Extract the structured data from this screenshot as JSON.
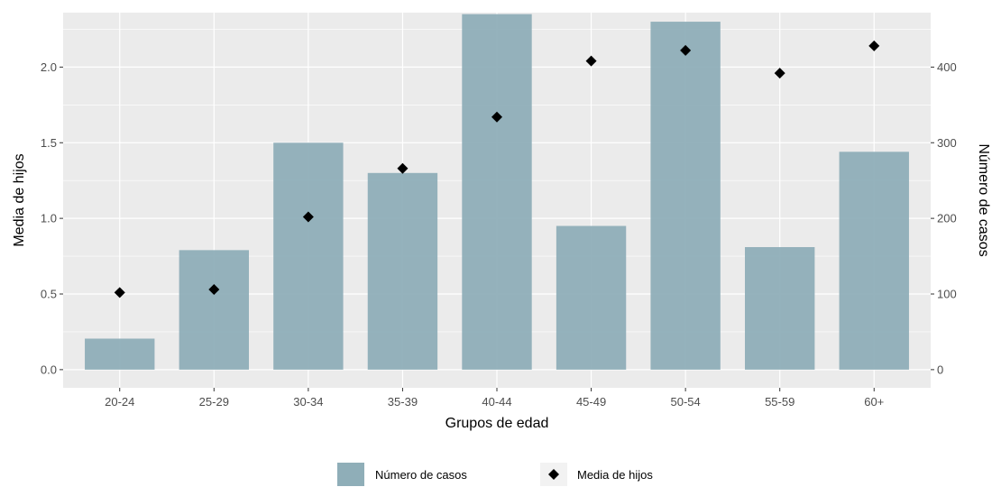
{
  "chart_data": {
    "type": "bar",
    "categories": [
      "20-24",
      "25-29",
      "30-34",
      "35-39",
      "40-44",
      "45-49",
      "50-54",
      "55-59",
      "60+"
    ],
    "series": [
      {
        "name": "Número de casos",
        "kind": "bar",
        "axis": "right",
        "color": "#8FAEB8",
        "values": [
          41,
          158,
          300,
          260,
          470,
          190,
          460,
          162,
          288
        ]
      },
      {
        "name": "Media de hijos",
        "kind": "point",
        "axis": "left",
        "color": "#000000",
        "values": [
          0.51,
          0.53,
          1.01,
          1.33,
          1.67,
          2.04,
          2.11,
          1.96,
          2.14
        ]
      }
    ],
    "xlabel": "Grupos de edad",
    "ylabel": "Media de hijos",
    "y2label": "Número de casos",
    "ylim": [
      -0.12,
      2.36
    ],
    "y2lim": [
      -24,
      472
    ],
    "yticks": [
      "0.0",
      "0.5",
      "1.0",
      "1.5",
      "2.0"
    ],
    "y2ticks": [
      "0",
      "100",
      "200",
      "300",
      "400"
    ],
    "grid": true,
    "legend_position": "bottom",
    "panel_background": "#EBEBEB"
  }
}
